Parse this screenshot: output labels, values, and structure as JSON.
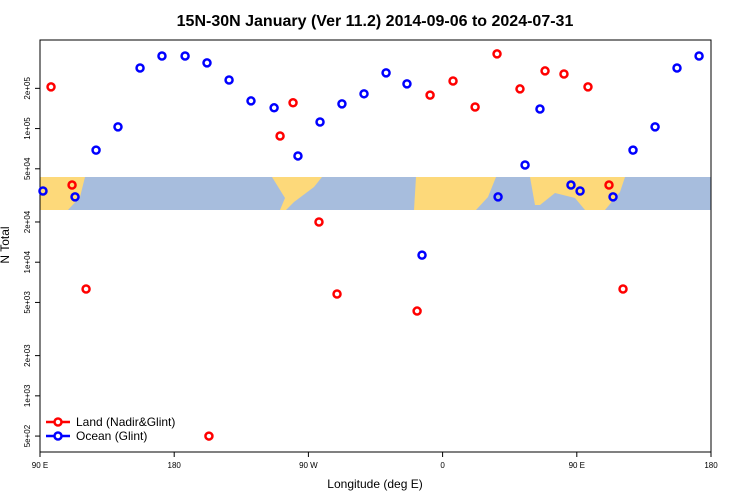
{
  "chart_data": {
    "type": "scatter",
    "title": "15N-30N January (Ver 11.2)   2014-09-06 to 2024-07-31",
    "x_label": "Longitude (deg E)",
    "y_label": "N Total",
    "log_y": true,
    "legend": "bottom-left",
    "xlim": [
      90,
      540
    ],
    "xticks": [
      {
        "value": 90,
        "label": "90 E"
      },
      {
        "value": 180,
        "label": "180"
      },
      {
        "value": 270,
        "label": "90 W"
      },
      {
        "value": 360,
        "label": "0"
      },
      {
        "value": 450,
        "label": "90 E"
      },
      {
        "value": 540,
        "label": "180"
      }
    ],
    "ylim": [
      380,
      460000
    ],
    "yticks": [
      {
        "value": 500,
        "label": "5e+02"
      },
      {
        "value": 1000,
        "label": "1e+03"
      },
      {
        "value": 2000,
        "label": "2e+03"
      },
      {
        "value": 5000,
        "label": "5e+03"
      },
      {
        "value": 10000,
        "label": "1e+04"
      },
      {
        "value": 20000,
        "label": "2e+04"
      },
      {
        "value": 50000,
        "label": "5e+04"
      },
      {
        "value": 100000,
        "label": "1e+05"
      },
      {
        "value": 200000,
        "label": "2e+05"
      }
    ],
    "series": [
      {
        "name": "Land (Nadir&Glint)",
        "color": "#ff0000",
        "x": [
          97.4,
          111.5,
          120.9,
          203.3,
          251,
          259.7,
          277.1,
          289.2,
          342.9,
          351.6,
          367,
          381.8,
          396.5,
          411.9,
          428.7,
          441.4,
          457.5,
          471.6,
          481
        ],
        "values": [
          205000,
          37800,
          6300,
          500,
          88000,
          156000,
          20000,
          5780,
          4310,
          178000,
          227000,
          145000,
          362000,
          198000,
          270000,
          256000,
          205000,
          37800,
          6300
        ]
      },
      {
        "name": "Ocean (Glint)",
        "color": "#0000ff",
        "x": [
          92,
          113.5,
          127.6,
          142.3,
          157.1,
          171.8,
          187.3,
          202,
          216.8,
          231.5,
          247,
          263,
          277.8,
          292.5,
          307.3,
          322.1,
          336.1,
          346.2,
          397.2,
          415.3,
          425.3,
          446.1,
          452.2,
          474.3,
          487.7,
          502.5,
          517.2,
          532
        ],
        "values": [
          34100,
          30800,
          69000,
          103000,
          284000,
          349000,
          349000,
          310000,
          231000,
          161000,
          143000,
          62400,
          112000,
          153000,
          182000,
          261000,
          216000,
          11300,
          30800,
          53400,
          140000,
          37800,
          34100,
          30800,
          69000,
          103000,
          284000,
          349000
        ]
      }
    ]
  }
}
